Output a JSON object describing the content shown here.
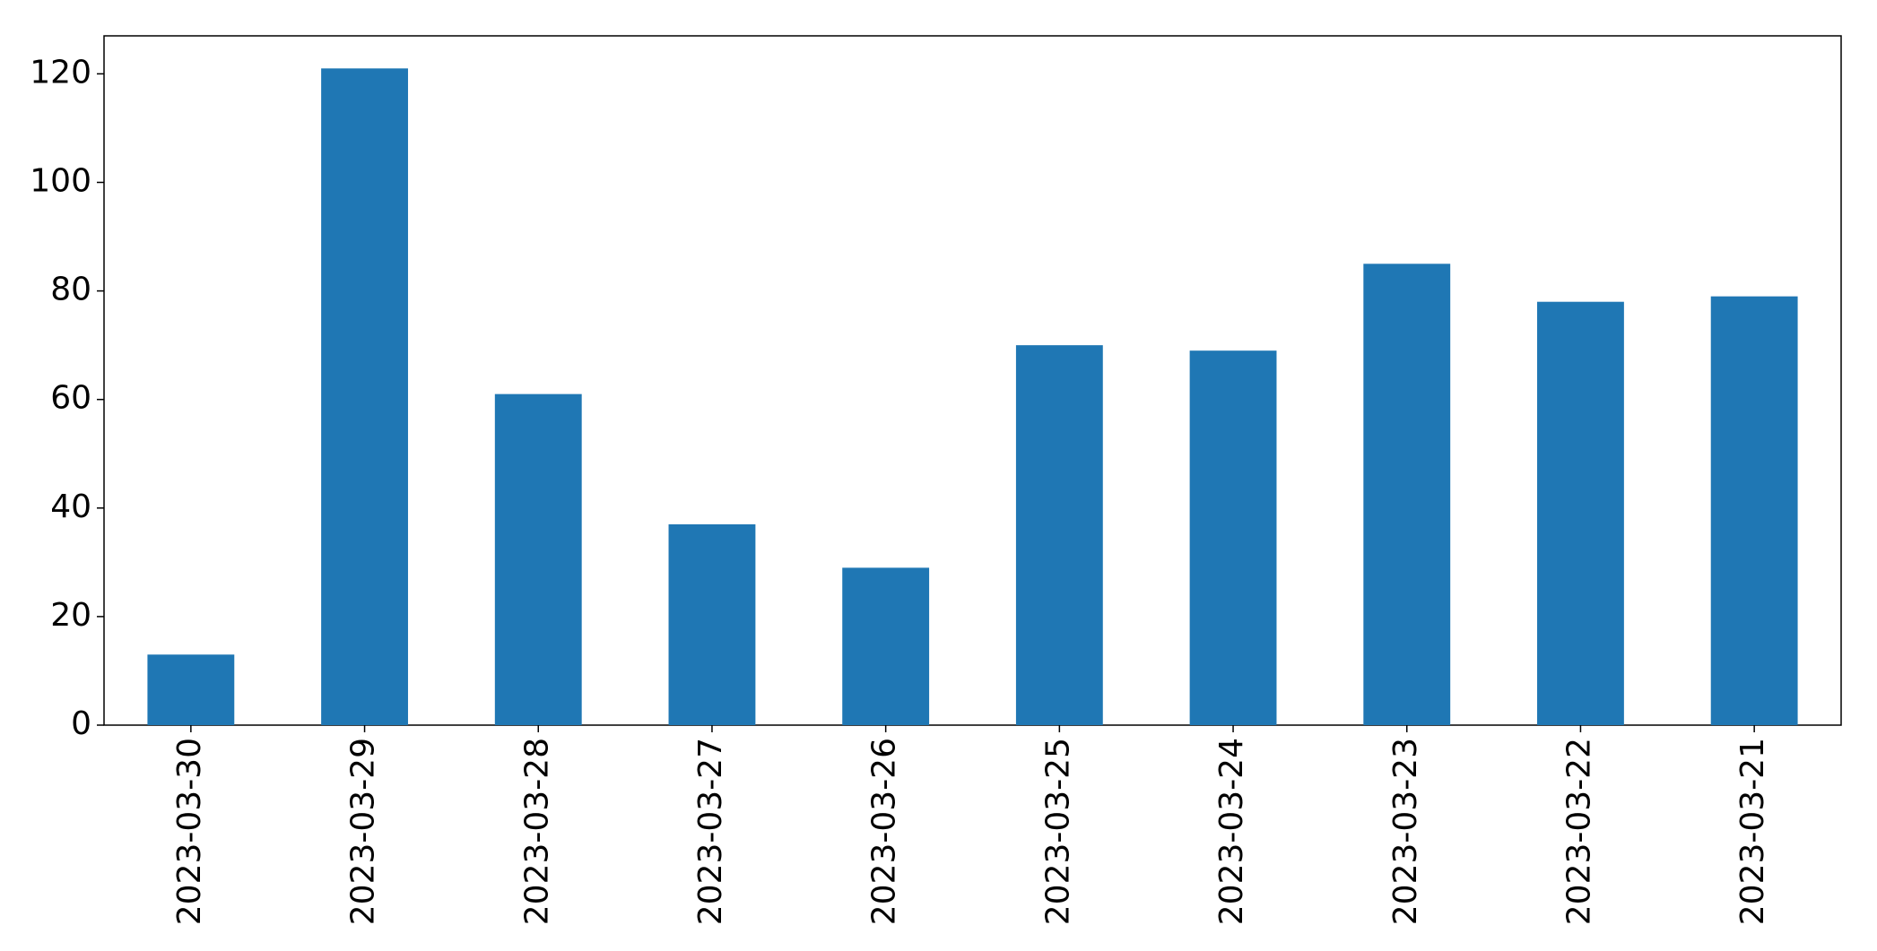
{
  "chart_data": {
    "type": "bar",
    "categories": [
      "2023-03-30",
      "2023-03-29",
      "2023-03-28",
      "2023-03-27",
      "2023-03-26",
      "2023-03-25",
      "2023-03-24",
      "2023-03-23",
      "2023-03-22",
      "2023-03-21"
    ],
    "values": [
      13,
      121,
      61,
      37,
      29,
      70,
      69,
      85,
      78,
      79
    ],
    "color": "#1f77b4",
    "ylim": [
      0,
      127
    ],
    "yticks": [
      0,
      20,
      40,
      60,
      80,
      100,
      120
    ],
    "grid": false
  }
}
